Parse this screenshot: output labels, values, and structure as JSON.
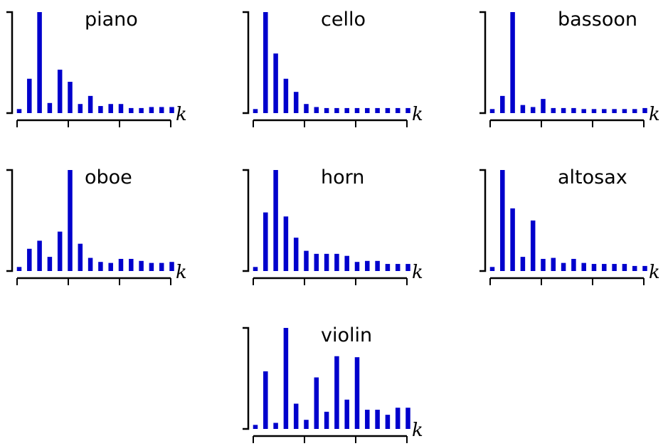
{
  "bar_color": "#0000cc",
  "chart_data": [
    {
      "type": "bar",
      "title": "piano",
      "xlabel": "k",
      "ylabel": "",
      "ylim": [
        0,
        1
      ],
      "grid": false,
      "values": [
        0.04,
        0.34,
        1.0,
        0.1,
        0.43,
        0.31,
        0.09,
        0.17,
        0.07,
        0.09,
        0.09,
        0.05,
        0.05,
        0.06,
        0.06,
        0.06
      ]
    },
    {
      "type": "bar",
      "title": "cello",
      "xlabel": "k",
      "ylabel": "",
      "ylim": [
        0,
        1
      ],
      "grid": false,
      "values": [
        0.04,
        1.0,
        0.59,
        0.34,
        0.21,
        0.09,
        0.06,
        0.05,
        0.05,
        0.05,
        0.05,
        0.05,
        0.05,
        0.05,
        0.05,
        0.05
      ]
    },
    {
      "type": "bar",
      "title": "bassoon",
      "xlabel": "k",
      "ylabel": "",
      "ylim": [
        0,
        1
      ],
      "grid": false,
      "values": [
        0.04,
        0.17,
        1.0,
        0.08,
        0.06,
        0.14,
        0.05,
        0.05,
        0.05,
        0.04,
        0.04,
        0.04,
        0.04,
        0.04,
        0.04,
        0.05
      ]
    },
    {
      "type": "bar",
      "title": "oboe",
      "xlabel": "k",
      "ylabel": "",
      "ylim": [
        0,
        1
      ],
      "grid": false,
      "values": [
        0.04,
        0.22,
        0.3,
        0.14,
        0.39,
        1.0,
        0.27,
        0.13,
        0.09,
        0.08,
        0.12,
        0.12,
        0.1,
        0.08,
        0.08,
        0.09
      ]
    },
    {
      "type": "bar",
      "title": "horn",
      "xlabel": "k",
      "ylabel": "",
      "ylim": [
        0,
        1
      ],
      "grid": false,
      "values": [
        0.04,
        0.58,
        1.0,
        0.54,
        0.33,
        0.2,
        0.17,
        0.17,
        0.17,
        0.15,
        0.09,
        0.1,
        0.1,
        0.07,
        0.07,
        0.07
      ]
    },
    {
      "type": "bar",
      "title": "altosax",
      "xlabel": "k",
      "ylabel": "",
      "ylim": [
        0,
        1
      ],
      "grid": false,
      "values": [
        0.04,
        1.0,
        0.62,
        0.14,
        0.5,
        0.12,
        0.13,
        0.08,
        0.12,
        0.08,
        0.07,
        0.07,
        0.07,
        0.07,
        0.05,
        0.05
      ]
    },
    {
      "type": "bar",
      "title": "violin",
      "xlabel": "k",
      "ylabel": "",
      "ylim": [
        0,
        1
      ],
      "grid": false,
      "values": [
        0.04,
        0.57,
        0.06,
        1.0,
        0.25,
        0.09,
        0.51,
        0.17,
        0.72,
        0.29,
        0.71,
        0.19,
        0.19,
        0.14,
        0.21,
        0.21
      ]
    }
  ]
}
